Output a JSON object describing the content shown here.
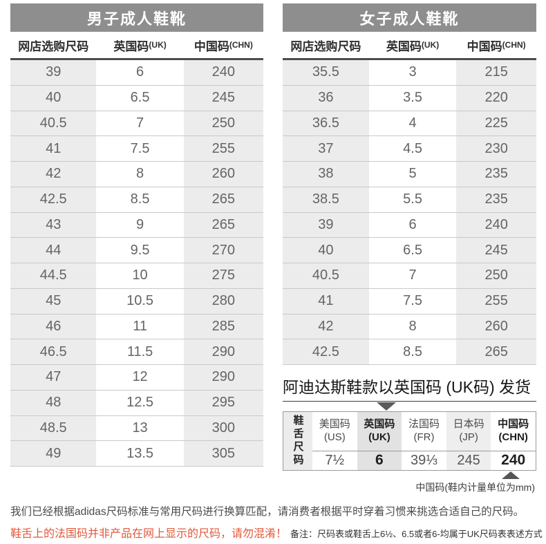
{
  "men_table": {
    "title": "男子成人鞋靴",
    "columns": [
      {
        "cn": "网店选购尺码",
        "en": ""
      },
      {
        "cn": "英国码",
        "en": "(UK)"
      },
      {
        "cn": "中国码",
        "en": "(CHN)"
      }
    ],
    "rows": [
      [
        "39",
        "6",
        "240"
      ],
      [
        "40",
        "6.5",
        "245"
      ],
      [
        "40.5",
        "7",
        "250"
      ],
      [
        "41",
        "7.5",
        "255"
      ],
      [
        "42",
        "8",
        "260"
      ],
      [
        "42.5",
        "8.5",
        "265"
      ],
      [
        "43",
        "9",
        "265"
      ],
      [
        "44",
        "9.5",
        "270"
      ],
      [
        "44.5",
        "10",
        "275"
      ],
      [
        "45",
        "10.5",
        "280"
      ],
      [
        "46",
        "11",
        "285"
      ],
      [
        "46.5",
        "11.5",
        "290"
      ],
      [
        "47",
        "12",
        "290"
      ],
      [
        "48",
        "12.5",
        "295"
      ],
      [
        "48.5",
        "13",
        "300"
      ],
      [
        "49",
        "13.5",
        "305"
      ]
    ]
  },
  "women_table": {
    "title": "女子成人鞋靴",
    "columns": [
      {
        "cn": "网店选购尺码",
        "en": ""
      },
      {
        "cn": "英国码",
        "en": "(UK)"
      },
      {
        "cn": "中国码",
        "en": "(CHN)"
      }
    ],
    "rows": [
      [
        "35.5",
        "3",
        "215"
      ],
      [
        "36",
        "3.5",
        "220"
      ],
      [
        "36.5",
        "4",
        "225"
      ],
      [
        "37",
        "4.5",
        "230"
      ],
      [
        "38",
        "5",
        "235"
      ],
      [
        "38.5",
        "5.5",
        "235"
      ],
      [
        "39",
        "6",
        "240"
      ],
      [
        "40",
        "6.5",
        "245"
      ],
      [
        "40.5",
        "7",
        "250"
      ],
      [
        "41",
        "7.5",
        "255"
      ],
      [
        "42",
        "8",
        "260"
      ],
      [
        "42.5",
        "8.5",
        "265"
      ]
    ]
  },
  "uk_notice": {
    "heading": "阿迪达斯鞋款以英国码 (UK码) 发货"
  },
  "tongue_table": {
    "row_label": "鞋舌尺码",
    "columns": [
      {
        "name": "美国码",
        "code": "(US)",
        "value": "7½",
        "emph": false,
        "shade": "none"
      },
      {
        "name": "英国码",
        "code": "(UK)",
        "value": "6",
        "emph": true,
        "shade": "dark"
      },
      {
        "name": "法国码",
        "code": "(FR)",
        "value": "39⅓",
        "emph": false,
        "shade": "none"
      },
      {
        "name": "日本码",
        "code": "(JP)",
        "value": "245",
        "emph": false,
        "shade": "light"
      },
      {
        "name": "中国码",
        "code": "(CHN)",
        "value": "240",
        "emph": true,
        "shade": "none"
      }
    ],
    "footnote": "中国码(鞋内计量单位为mm)"
  },
  "footer": {
    "line1": "我们已经根据adidas尺码标准与常用尺码进行换算匹配，请消费者根据平时穿着习惯来挑选合适自己的尺码。",
    "warning": "鞋舌上的法国码并非产品在网上显示的尺码，请勿混淆！",
    "note": "备注：尺码表或鞋舌上6½、6.5或者6-均属于UK尺码表表述方式"
  },
  "colors": {
    "title_bar": "#8e8e8e",
    "header_rule": "#4c4c4c",
    "cell_shade": "#ececec",
    "accent_red": "#e2583a"
  }
}
